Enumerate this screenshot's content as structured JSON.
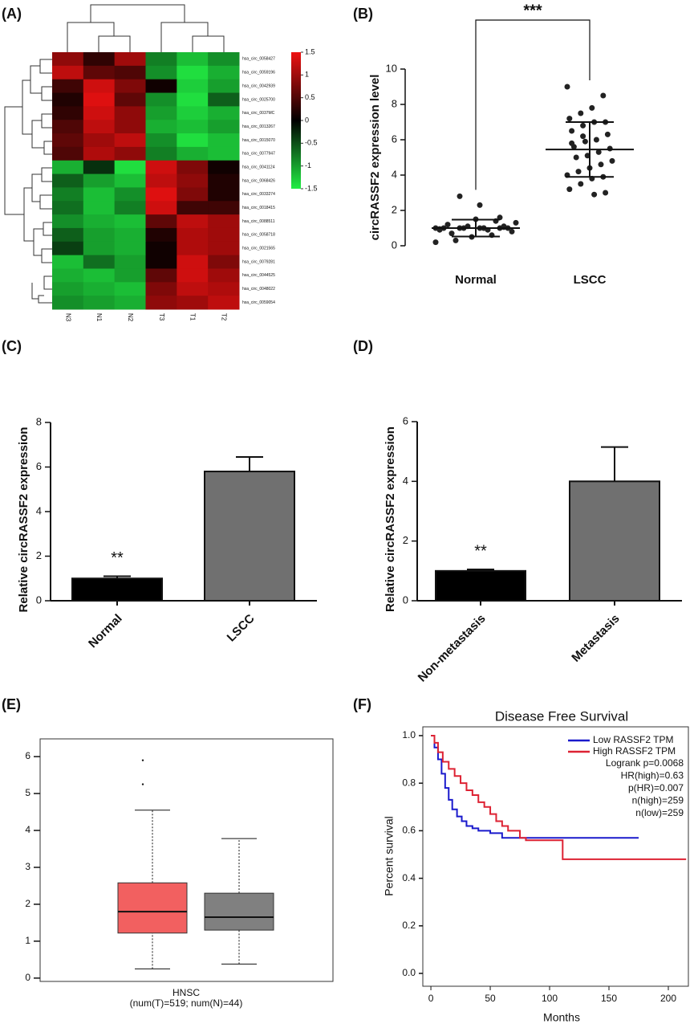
{
  "chart_data": [
    {
      "type": "heatmap",
      "panel": "(A)",
      "columns": [
        "N3",
        "N1",
        "N2",
        "T3",
        "T1",
        "T2"
      ],
      "rows": [
        "hsa_circ_0058427",
        "hsa_circ_0059196",
        "hsa_circ_0042939",
        "hsa_circ_0025700",
        "hsa_circ_0037MC",
        "hsa_circ_0013267",
        "hsa_circ_0015070",
        "hsa_circ_0077947",
        "hsa_circ_0041124",
        "hsa_circ_0068426",
        "hsa_circ_0033274",
        "hsa_circ_0018415",
        "hsa_circ_0088511",
        "hsa_circ_0058718",
        "hsa_circ_0021565",
        "hsa_circ_0079281",
        "hsa_circ_0044525",
        "hsa_circ_0048022",
        "hsa_circ_0059054"
      ],
      "values": [
        [
          0.9,
          0.3,
          1.0,
          -0.8,
          -1.2,
          -0.9
        ],
        [
          1.2,
          0.6,
          0.5,
          -0.9,
          -1.4,
          -1.1
        ],
        [
          0.4,
          1.3,
          0.8,
          0.1,
          -1.3,
          -1.0
        ],
        [
          0.2,
          1.4,
          0.6,
          -0.9,
          -1.4,
          -0.6
        ],
        [
          0.3,
          1.3,
          0.9,
          -1.0,
          -1.3,
          -1.1
        ],
        [
          0.5,
          1.2,
          0.9,
          -1.1,
          -1.2,
          -1.0
        ],
        [
          0.6,
          1.0,
          1.2,
          -0.9,
          -1.4,
          -1.2
        ],
        [
          0.5,
          1.1,
          0.9,
          -0.8,
          -1.1,
          -1.2
        ],
        [
          -1.1,
          -0.3,
          -1.4,
          1.3,
          0.8,
          0.1
        ],
        [
          -0.6,
          -1.0,
          -1.2,
          1.2,
          0.9,
          0.2
        ],
        [
          -0.8,
          -1.2,
          -0.9,
          1.4,
          0.8,
          0.2
        ],
        [
          -0.7,
          -1.2,
          -0.8,
          1.3,
          0.4,
          0.4
        ],
        [
          -0.9,
          -1.1,
          -1.2,
          0.6,
          1.2,
          1.0
        ],
        [
          -0.6,
          -1.0,
          -1.1,
          0.2,
          1.1,
          1.0
        ],
        [
          -0.4,
          -1.0,
          -1.1,
          0.1,
          1.1,
          1.0
        ],
        [
          -1.2,
          -0.7,
          -1.0,
          0.1,
          1.3,
          0.8
        ],
        [
          -1.1,
          -1.2,
          -1.0,
          0.6,
          1.3,
          1.0
        ],
        [
          -1.0,
          -1.1,
          -1.2,
          0.8,
          1.2,
          1.1
        ],
        [
          -0.9,
          -1.0,
          -1.1,
          0.9,
          1.0,
          1.2
        ]
      ],
      "clim": [
        -1.5,
        1.5
      ],
      "cticks": [
        -1.5,
        -1,
        -0.5,
        0,
        0.5,
        1,
        1.5
      ],
      "colors": [
        "#22ee44",
        "#000000",
        "#ee1111"
      ]
    },
    {
      "type": "dot",
      "panel": "(B)",
      "ylabel": "circRASSF2 expression level",
      "annotation": "***",
      "categories": [
        "Normal",
        "LSCC"
      ],
      "groups": [
        {
          "values": [
            1.0,
            1.0,
            1.0,
            1.0,
            0.95,
            1.05,
            1.0,
            1.0,
            1.0,
            1.0,
            0.9,
            1.1,
            1.2,
            0.8,
            0.6,
            0.5,
            0.7,
            1.3,
            1.4,
            1.5,
            0.3,
            0.2,
            1.6,
            2.3,
            2.8,
            0.9,
            1.1,
            1.0
          ],
          "mean": 1.0,
          "sd": 0.48
        },
        {
          "values": [
            9.0,
            8.5,
            7.8,
            7.5,
            7.2,
            7.0,
            7.0,
            6.8,
            6.5,
            6.3,
            6.0,
            5.9,
            5.6,
            5.5,
            5.3,
            5.1,
            5.0,
            4.8,
            4.6,
            4.4,
            4.2,
            4.0,
            3.9,
            3.8,
            3.5,
            3.2,
            3.0,
            2.9,
            6.2,
            5.8
          ],
          "mean": 5.45,
          "sd": 1.55
        }
      ],
      "color": "#222222",
      "ylim": [
        0,
        10
      ],
      "yticks": [
        0,
        2,
        4,
        6,
        8,
        10
      ]
    },
    {
      "type": "bar",
      "panel": "(C)",
      "ylabel": "Relative circRASSF2 expression",
      "annotation": "**",
      "categories": [
        "Normal",
        "LSCC"
      ],
      "values": [
        1.0,
        5.8
      ],
      "errors": [
        0.1,
        0.65
      ],
      "colors": [
        "#000000",
        "#707070"
      ],
      "ylim": [
        0,
        8
      ],
      "yticks": [
        0,
        2,
        4,
        6,
        8
      ]
    },
    {
      "type": "bar",
      "panel": "(D)",
      "ylabel": "Relative circRASSF2 expression",
      "annotation": "**",
      "categories": [
        "Non-metastasis",
        "Metastasis"
      ],
      "values": [
        1.0,
        4.0
      ],
      "errors": [
        0.05,
        1.15
      ],
      "colors": [
        "#000000",
        "#707070"
      ],
      "ylim": [
        0,
        6
      ],
      "yticks": [
        0,
        2,
        4,
        6
      ]
    },
    {
      "type": "box",
      "panel": "(E)",
      "xlabel": "HNSC",
      "subtitle": "(num(T)=519; num(N)=44)",
      "boxes": [
        {
          "min": 0.25,
          "q1": 1.22,
          "median": 1.8,
          "q3": 2.58,
          "max": 4.55,
          "outliers": [
            5.9,
            5.25
          ],
          "color": "#f26060"
        },
        {
          "min": 0.38,
          "q1": 1.3,
          "median": 1.65,
          "q3": 2.3,
          "max": 3.78,
          "outliers": [],
          "color": "#808080"
        }
      ],
      "ylim": [
        -0.09,
        6.48
      ],
      "yticks": [
        0,
        1,
        2,
        3,
        4,
        5,
        6
      ]
    },
    {
      "type": "survival",
      "panel": "(F)",
      "title": "Disease Free Survival",
      "xlabel": "Months",
      "ylabel": "Percent survival",
      "series": [
        {
          "name": "Low RASSF2 TPM",
          "color": "#1a1acc",
          "x": [
            0,
            3,
            6,
            9,
            12,
            15,
            18,
            22,
            26,
            30,
            35,
            40,
            50,
            60,
            80,
            100,
            120,
            140,
            175
          ],
          "values": [
            1,
            0.95,
            0.9,
            0.84,
            0.78,
            0.73,
            0.69,
            0.66,
            0.64,
            0.62,
            0.61,
            0.6,
            0.59,
            0.57,
            0.57,
            0.57,
            0.57,
            0.57,
            0.57
          ]
        },
        {
          "name": "High RASSF2 TPM",
          "color": "#dd2233",
          "x": [
            0,
            3,
            6,
            10,
            15,
            20,
            25,
            30,
            35,
            40,
            45,
            50,
            55,
            60,
            65,
            75,
            80,
            110,
            111,
            215
          ],
          "values": [
            1,
            0.97,
            0.93,
            0.89,
            0.86,
            0.83,
            0.8,
            0.77,
            0.75,
            0.72,
            0.7,
            0.67,
            0.64,
            0.62,
            0.6,
            0.57,
            0.56,
            0.56,
            0.48,
            0.48
          ]
        }
      ],
      "stats": [
        "Logrank p=0.0068",
        "HR(high)=0.63",
        "p(HR)=0.007",
        "n(high)=259",
        "n(low)=259"
      ],
      "xlim": [
        -6.8,
        216.9
      ],
      "xticks": [
        0,
        50,
        100,
        150,
        200
      ],
      "ylim": [
        -0.054,
        1.037
      ],
      "yticks": [
        {
          "value": 0,
          "label": "0.0"
        },
        0.2,
        0.4,
        0.6,
        0.8,
        {
          "value": 1,
          "label": "1.0"
        }
      ]
    }
  ]
}
